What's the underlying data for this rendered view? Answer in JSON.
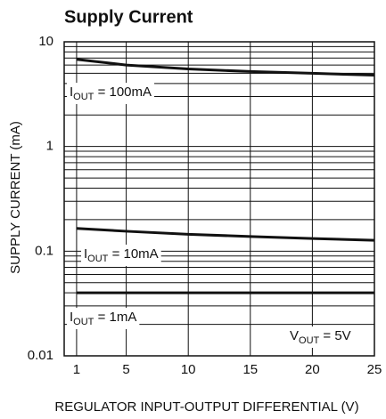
{
  "chart_data": {
    "type": "line",
    "title": "Supply Current",
    "xlabel": "REGULATOR INPUT-OUTPUT DIFFERENTIAL (V)",
    "ylabel": "SUPPLY CURRENT (mA)",
    "xlim": [
      0,
      25
    ],
    "xticks": [
      1,
      5,
      10,
      15,
      20,
      25
    ],
    "ylim": [
      0.01,
      10
    ],
    "yticks": [
      0.01,
      0.1,
      1,
      10
    ],
    "yscale": "log",
    "grid": true,
    "x": [
      1,
      5,
      10,
      15,
      20,
      25
    ],
    "series": [
      {
        "name": "IOUT = 100mA",
        "color": "#111111",
        "values": [
          6.8,
          6.0,
          5.5,
          5.2,
          5.0,
          4.8
        ]
      },
      {
        "name": "IOUT = 10mA",
        "color": "#111111",
        "values": [
          0.165,
          0.155,
          0.145,
          0.138,
          0.132,
          0.127
        ]
      },
      {
        "name": "IOUT = 1mA",
        "color": "#111111",
        "values": [
          0.04,
          0.04,
          0.04,
          0.04,
          0.04,
          0.04
        ]
      }
    ],
    "annotations": [
      {
        "main": "I",
        "sub": "OUT",
        "rest": " = 100mA"
      },
      {
        "main": "I",
        "sub": "OUT",
        "rest": " = 10mA"
      },
      {
        "main": "I",
        "sub": "OUT",
        "rest": " = 1mA"
      },
      {
        "main": "V",
        "sub": "OUT",
        "rest": " = 5V"
      }
    ]
  }
}
